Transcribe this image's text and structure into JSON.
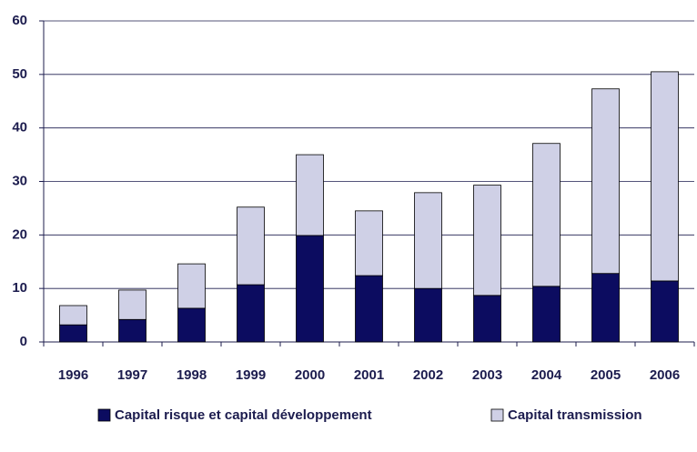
{
  "chart_data": {
    "type": "stacked-bar",
    "categories": [
      "1996",
      "1997",
      "1998",
      "1999",
      "2000",
      "2001",
      "2002",
      "2003",
      "2004",
      "2005",
      "2006"
    ],
    "series": [
      {
        "name": "Capital risque et capital développement",
        "color": "#0c0c60",
        "values": [
          3.2,
          4.2,
          6.3,
          10.7,
          19.9,
          12.4,
          10.0,
          8.7,
          10.4,
          12.8,
          11.4
        ]
      },
      {
        "name": "Capital transmission",
        "color": "#cfd0e6",
        "values": [
          3.6,
          5.5,
          8.3,
          14.5,
          15.1,
          12.1,
          17.9,
          20.6,
          26.7,
          34.5,
          39.1
        ]
      }
    ],
    "ylim": [
      0,
      60
    ],
    "yticks": [
      0,
      10,
      20,
      30,
      40,
      50,
      60
    ],
    "grid": true,
    "legend": "bottom"
  }
}
